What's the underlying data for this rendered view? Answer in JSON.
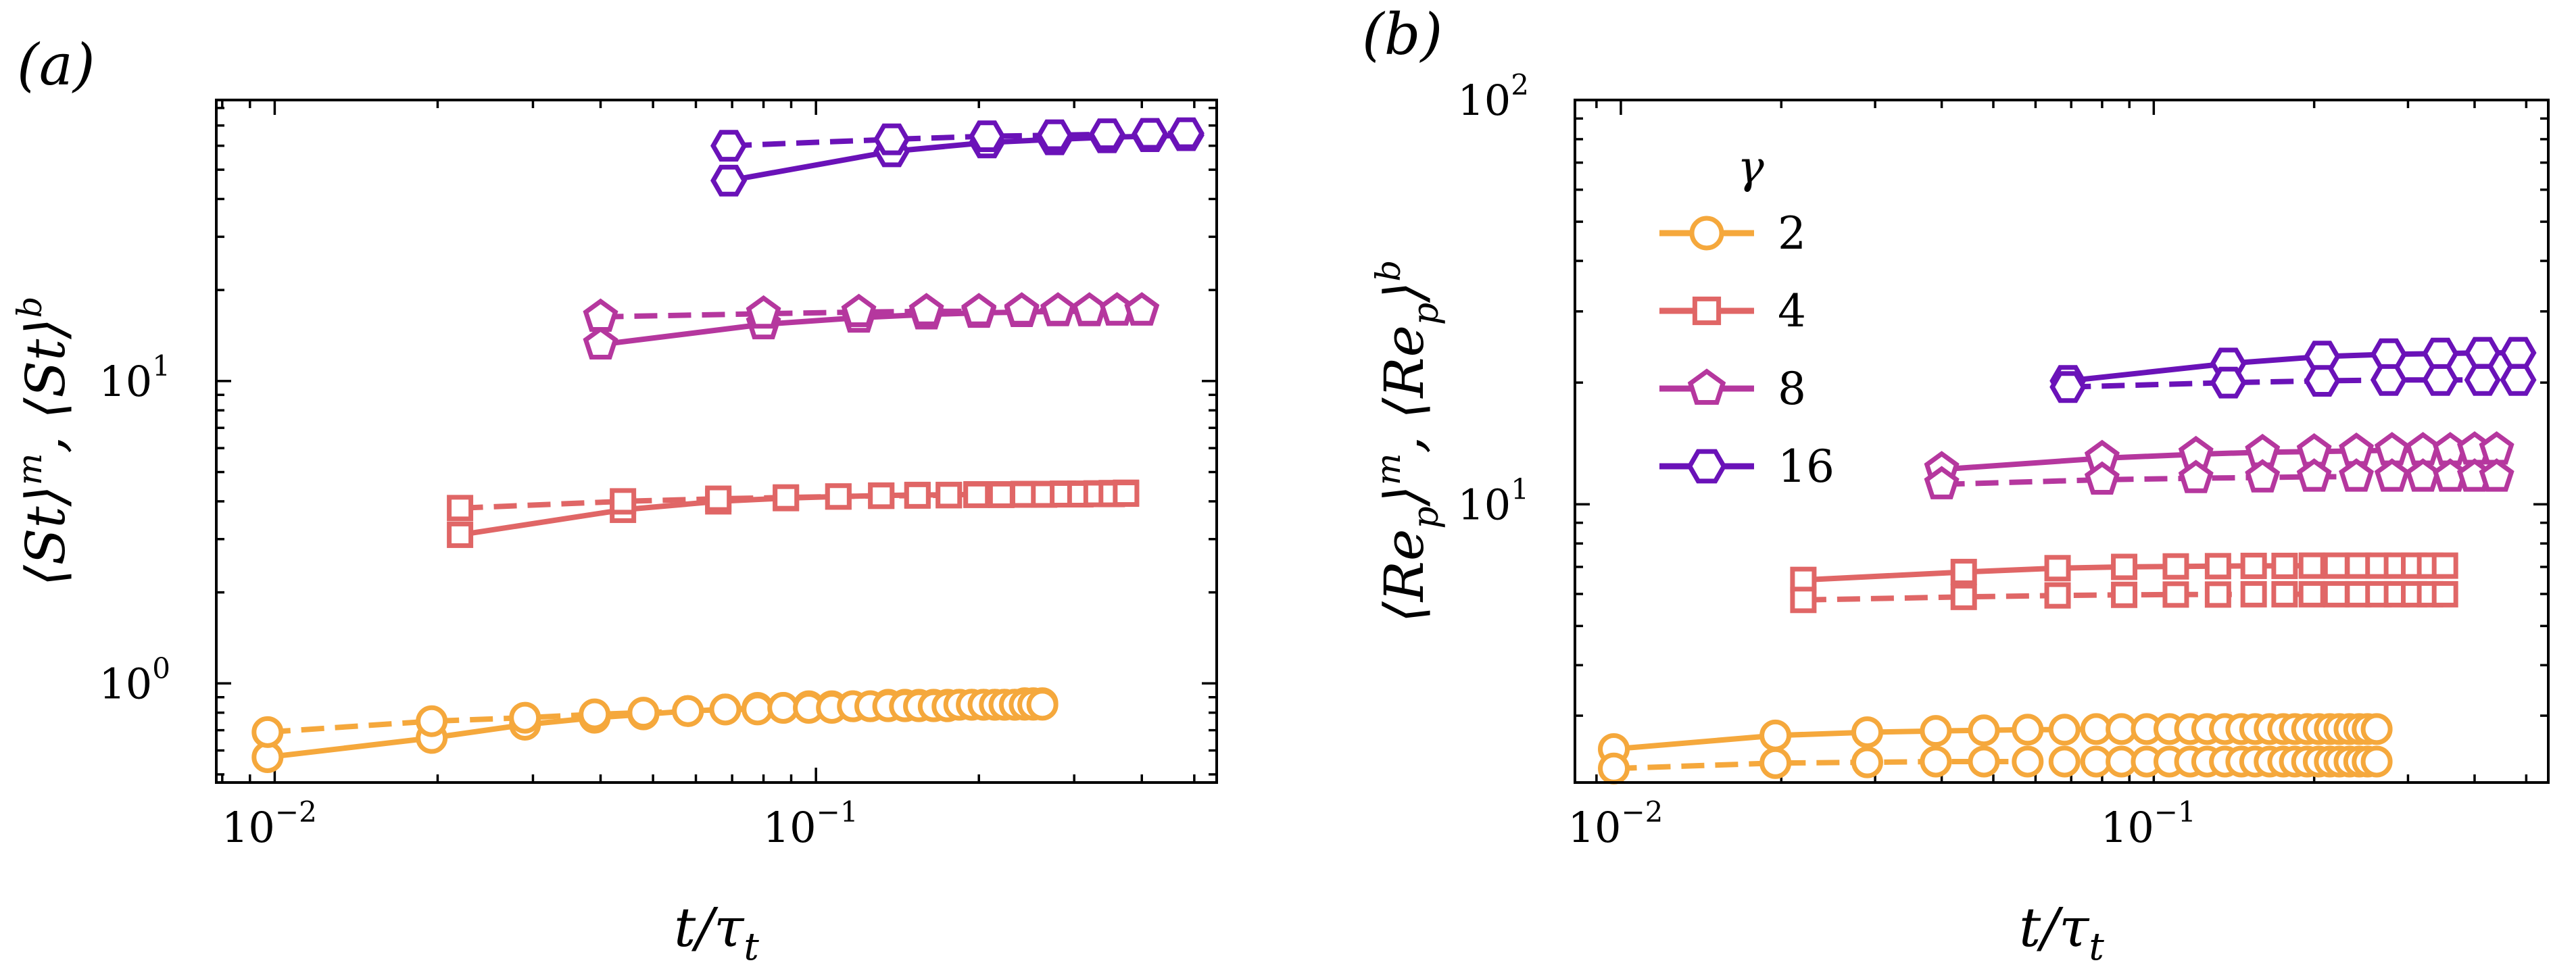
{
  "chart_data": [
    {
      "type": "line",
      "panel": "(a)",
      "xlabel": "t/τ_t",
      "ylabel": "⟨St⟩^m, ⟨St⟩^b",
      "xscale": "log",
      "yscale": "log",
      "xlim": [
        0.0078,
        0.55
      ],
      "ylim": [
        0.47,
        85
      ],
      "x_ticks": [
        {
          "base": "10",
          "exp": "−2",
          "value": 0.01
        },
        {
          "base": "10",
          "exp": "−1",
          "value": 0.1
        }
      ],
      "y_ticks": [
        {
          "base": "10",
          "exp": "0",
          "value": 1
        },
        {
          "base": "10",
          "exp": "1",
          "value": 10
        }
      ],
      "legend": "none",
      "series": [
        {
          "gamma": "2",
          "style": "solid",
          "marker": "circle",
          "color": "#f5a83c",
          "x": [
            0.0097,
            0.0195,
            0.029,
            0.039,
            0.048,
            0.058,
            0.068,
            0.078,
            0.087,
            0.097,
            0.107,
            0.117,
            0.126,
            0.136,
            0.146,
            0.155,
            0.165,
            0.175,
            0.184,
            0.194,
            0.204,
            0.214,
            0.223,
            0.233,
            0.243,
            0.252,
            0.262
          ],
          "y": [
            0.57,
            0.66,
            0.73,
            0.77,
            0.79,
            0.81,
            0.82,
            0.83,
            0.83,
            0.84,
            0.84,
            0.84,
            0.84,
            0.85,
            0.85,
            0.85,
            0.85,
            0.85,
            0.85,
            0.85,
            0.85,
            0.85,
            0.85,
            0.85,
            0.86,
            0.86,
            0.86
          ]
        },
        {
          "gamma": "2",
          "style": "dashed",
          "marker": "circle",
          "color": "#f5a83c",
          "x": [
            0.0097,
            0.0195,
            0.029,
            0.039,
            0.048,
            0.058,
            0.068,
            0.078,
            0.087,
            0.097,
            0.107,
            0.117,
            0.126,
            0.136,
            0.146,
            0.155,
            0.165,
            0.175,
            0.184,
            0.194,
            0.204,
            0.214,
            0.223,
            0.233,
            0.243,
            0.252,
            0.262
          ],
          "y": [
            0.69,
            0.75,
            0.77,
            0.79,
            0.8,
            0.81,
            0.82,
            0.82,
            0.83,
            0.83,
            0.83,
            0.84,
            0.84,
            0.84,
            0.84,
            0.84,
            0.84,
            0.84,
            0.85,
            0.85,
            0.85,
            0.85,
            0.85,
            0.85,
            0.85,
            0.85,
            0.85
          ]
        },
        {
          "gamma": "4",
          "style": "solid",
          "marker": "square",
          "color": "#e06666",
          "x": [
            0.022,
            0.044,
            0.066,
            0.088,
            0.11,
            0.132,
            0.154,
            0.176,
            0.198,
            0.22,
            0.242,
            0.264,
            0.286,
            0.308,
            0.33,
            0.352,
            0.374
          ],
          "y": [
            3.1,
            3.75,
            4.0,
            4.1,
            4.15,
            4.18,
            4.2,
            4.2,
            4.22,
            4.22,
            4.23,
            4.23,
            4.24,
            4.24,
            4.25,
            4.26,
            4.27
          ]
        },
        {
          "gamma": "4",
          "style": "dashed",
          "marker": "square",
          "color": "#e06666",
          "x": [
            0.022,
            0.044,
            0.066,
            0.088,
            0.11,
            0.132,
            0.154,
            0.176,
            0.198,
            0.22,
            0.242,
            0.264,
            0.286,
            0.308,
            0.33,
            0.352,
            0.374
          ],
          "y": [
            3.8,
            4.0,
            4.08,
            4.12,
            4.15,
            4.17,
            4.18,
            4.19,
            4.2,
            4.2,
            4.21,
            4.21,
            4.22,
            4.22,
            4.23,
            4.23,
            4.24
          ]
        },
        {
          "gamma": "8",
          "style": "solid",
          "marker": "pentagon",
          "color": "#b5379e",
          "x": [
            0.04,
            0.08,
            0.12,
            0.16,
            0.2,
            0.24,
            0.28,
            0.32,
            0.36,
            0.4
          ],
          "y": [
            13.2,
            15.4,
            16.2,
            16.6,
            16.8,
            16.9,
            17.0,
            17.0,
            17.1,
            17.1
          ]
        },
        {
          "gamma": "8",
          "style": "dashed",
          "marker": "pentagon",
          "color": "#b5379e",
          "x": [
            0.04,
            0.08,
            0.12,
            0.16,
            0.2,
            0.24,
            0.28,
            0.32,
            0.36,
            0.4
          ],
          "y": [
            16.3,
            16.7,
            16.9,
            17.0,
            17.0,
            17.1,
            17.1,
            17.1,
            17.1,
            17.1
          ]
        },
        {
          "gamma": "16",
          "style": "solid",
          "marker": "hexagon",
          "color": "#6a12b8",
          "x": [
            0.069,
            0.138,
            0.207,
            0.276,
            0.345,
            0.414,
            0.483
          ],
          "y": [
            46,
            57.5,
            61.5,
            63,
            64,
            64.5,
            65
          ]
        },
        {
          "gamma": "16",
          "style": "dashed",
          "marker": "hexagon",
          "color": "#6a12b8",
          "x": [
            0.069,
            0.138,
            0.207,
            0.276,
            0.345,
            0.414,
            0.483
          ],
          "y": [
            60,
            63,
            64.5,
            65,
            65.5,
            65.7,
            66
          ]
        }
      ]
    },
    {
      "type": "line",
      "panel": "(b)",
      "xlabel": "t/τ_t",
      "ylabel": "⟨Re_p⟩^m, ⟨Re_p⟩^b",
      "xscale": "log",
      "yscale": "log",
      "xlim": [
        0.0082,
        0.55
      ],
      "ylim": [
        2.05,
        100
      ],
      "x_ticks": [
        {
          "base": "10",
          "exp": "−2",
          "value": 0.01
        },
        {
          "base": "10",
          "exp": "−1",
          "value": 0.1
        }
      ],
      "y_ticks": [
        {
          "base": "10",
          "exp": "1",
          "value": 10
        },
        {
          "base": "10",
          "exp": "2",
          "value": 100
        }
      ],
      "legend": "upper-left",
      "legend_title": "γ",
      "series": [
        {
          "name": "2",
          "style": "solid",
          "marker": "circle",
          "color": "#f5a83c",
          "x": [
            0.0097,
            0.0195,
            0.029,
            0.039,
            0.048,
            0.058,
            0.068,
            0.078,
            0.087,
            0.097,
            0.107,
            0.117,
            0.126,
            0.136,
            0.146,
            0.155,
            0.165,
            0.175,
            0.184,
            0.194,
            0.204,
            0.214,
            0.223,
            0.233,
            0.243,
            0.252,
            0.262
          ],
          "y": [
            2.48,
            2.68,
            2.73,
            2.75,
            2.76,
            2.77,
            2.77,
            2.78,
            2.78,
            2.78,
            2.78,
            2.78,
            2.78,
            2.78,
            2.78,
            2.78,
            2.78,
            2.78,
            2.78,
            2.78,
            2.78,
            2.78,
            2.78,
            2.78,
            2.78,
            2.78,
            2.78
          ]
        },
        {
          "gamma": "2",
          "style": "dashed",
          "marker": "circle",
          "color": "#f5a83c",
          "x": [
            0.0097,
            0.0195,
            0.029,
            0.039,
            0.048,
            0.058,
            0.068,
            0.078,
            0.087,
            0.097,
            0.107,
            0.117,
            0.126,
            0.136,
            0.146,
            0.155,
            0.165,
            0.175,
            0.184,
            0.194,
            0.204,
            0.214,
            0.223,
            0.233,
            0.243,
            0.252,
            0.262
          ],
          "y": [
            2.22,
            2.29,
            2.3,
            2.31,
            2.31,
            2.31,
            2.31,
            2.31,
            2.31,
            2.31,
            2.31,
            2.31,
            2.31,
            2.31,
            2.31,
            2.31,
            2.31,
            2.31,
            2.31,
            2.31,
            2.31,
            2.31,
            2.31,
            2.31,
            2.31,
            2.31,
            2.31
          ]
        },
        {
          "name": "4",
          "style": "solid",
          "marker": "square",
          "color": "#e06666",
          "x": [
            0.022,
            0.044,
            0.066,
            0.088,
            0.11,
            0.132,
            0.154,
            0.176,
            0.198,
            0.22,
            0.242,
            0.264,
            0.286,
            0.308,
            0.33,
            0.352
          ],
          "y": [
            6.5,
            6.8,
            6.95,
            7.0,
            7.02,
            7.03,
            7.04,
            7.04,
            7.05,
            7.05,
            7.05,
            7.05,
            7.05,
            7.05,
            7.05,
            7.05
          ]
        },
        {
          "gamma": "4",
          "style": "dashed",
          "marker": "square",
          "color": "#e06666",
          "x": [
            0.022,
            0.044,
            0.066,
            0.088,
            0.11,
            0.132,
            0.154,
            0.176,
            0.198,
            0.22,
            0.242,
            0.264,
            0.286,
            0.308,
            0.33,
            0.352
          ],
          "y": [
            5.8,
            5.9,
            5.95,
            5.97,
            5.98,
            5.98,
            5.99,
            5.99,
            5.99,
            5.99,
            5.99,
            5.99,
            5.99,
            5.99,
            5.99,
            5.99
          ]
        },
        {
          "name": "8",
          "style": "solid",
          "marker": "pentagon",
          "color": "#b5379e",
          "x": [
            0.04,
            0.08,
            0.12,
            0.16,
            0.2,
            0.24,
            0.28,
            0.32,
            0.36,
            0.4,
            0.44
          ],
          "y": [
            12.2,
            13.0,
            13.3,
            13.45,
            13.5,
            13.55,
            13.6,
            13.6,
            13.6,
            13.65,
            13.65
          ]
        },
        {
          "gamma": "8",
          "style": "dashed",
          "marker": "pentagon",
          "color": "#b5379e",
          "x": [
            0.04,
            0.08,
            0.12,
            0.16,
            0.2,
            0.24,
            0.28,
            0.32,
            0.36,
            0.4,
            0.44
          ],
          "y": [
            11.2,
            11.5,
            11.6,
            11.65,
            11.7,
            11.7,
            11.7,
            11.7,
            11.7,
            11.7,
            11.7
          ]
        },
        {
          "name": "16",
          "style": "solid",
          "marker": "hexagon",
          "color": "#6a12b8",
          "x": [
            0.069,
            0.138,
            0.207,
            0.276,
            0.345,
            0.414,
            0.483
          ],
          "y": [
            20.2,
            22.3,
            23.2,
            23.5,
            23.6,
            23.7,
            23.7
          ]
        },
        {
          "gamma": "16",
          "style": "dashed",
          "marker": "hexagon",
          "color": "#6a12b8",
          "x": [
            0.069,
            0.138,
            0.207,
            0.276,
            0.345,
            0.414,
            0.483
          ],
          "y": [
            19.5,
            20.0,
            20.2,
            20.3,
            20.3,
            20.3,
            20.3
          ]
        }
      ]
    }
  ]
}
